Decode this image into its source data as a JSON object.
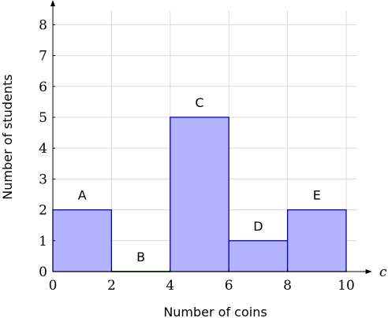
{
  "chart_data": {
    "type": "bar",
    "title": "",
    "xlabel": "Number of coins",
    "ylabel": "Number of students",
    "x_axis_variable": "c",
    "xlim": [
      0,
      10.5
    ],
    "ylim": [
      0,
      8.6
    ],
    "x_ticks": [
      0,
      2,
      4,
      6,
      8,
      10
    ],
    "y_ticks": [
      0,
      1,
      2,
      3,
      4,
      5,
      6,
      7,
      8
    ],
    "x_grid_lines": [
      0,
      2,
      4,
      6,
      8,
      10
    ],
    "y_grid_lines": [
      1,
      2,
      3,
      4,
      5,
      6,
      7,
      8
    ],
    "grid": true,
    "bars": [
      {
        "label": "A",
        "x_start": 0,
        "x_end": 2,
        "value": 2
      },
      {
        "label": "B",
        "x_start": 2,
        "x_end": 4,
        "value": 0
      },
      {
        "label": "C",
        "x_start": 4,
        "x_end": 6,
        "value": 5
      },
      {
        "label": "D",
        "x_start": 6,
        "x_end": 8,
        "value": 1
      },
      {
        "label": "E",
        "x_start": 8,
        "x_end": 10,
        "value": 2
      }
    ],
    "colors": {
      "bar_fill": "#b3b3ff",
      "bar_stroke": "#0000cc",
      "empty_bar_line": "#2e7d32",
      "grid": "#d9d9d9",
      "axis": "#000000"
    }
  }
}
